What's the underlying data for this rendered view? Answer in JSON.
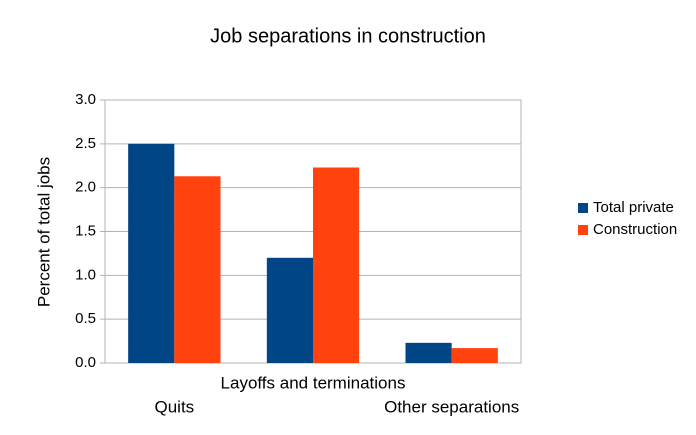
{
  "chart_data": {
    "type": "bar",
    "title": "Job separations in construction",
    "y_label": "Percent of total jobs",
    "categories": [
      "Quits",
      "Layoffs and terminations",
      "Other separations"
    ],
    "series": [
      {
        "name": "Total private",
        "color": "#004586",
        "values": [
          2.5,
          1.2,
          0.23
        ]
      },
      {
        "name": "Construction",
        "color": "#ff420e",
        "values": [
          2.13,
          2.23,
          0.17
        ]
      }
    ],
    "ylim": [
      0,
      3
    ],
    "yticks": [
      {
        "value": 0,
        "label": "0.0"
      },
      {
        "value": 0.5,
        "label": "0.5"
      },
      {
        "value": 1,
        "label": "1.0"
      },
      {
        "value": 1.5,
        "label": "1.5"
      },
      {
        "value": 2,
        "label": "2.0"
      },
      {
        "value": 2.5,
        "label": "2.5"
      },
      {
        "value": 3,
        "label": "3.0"
      }
    ],
    "grid": true,
    "legend": "right"
  }
}
